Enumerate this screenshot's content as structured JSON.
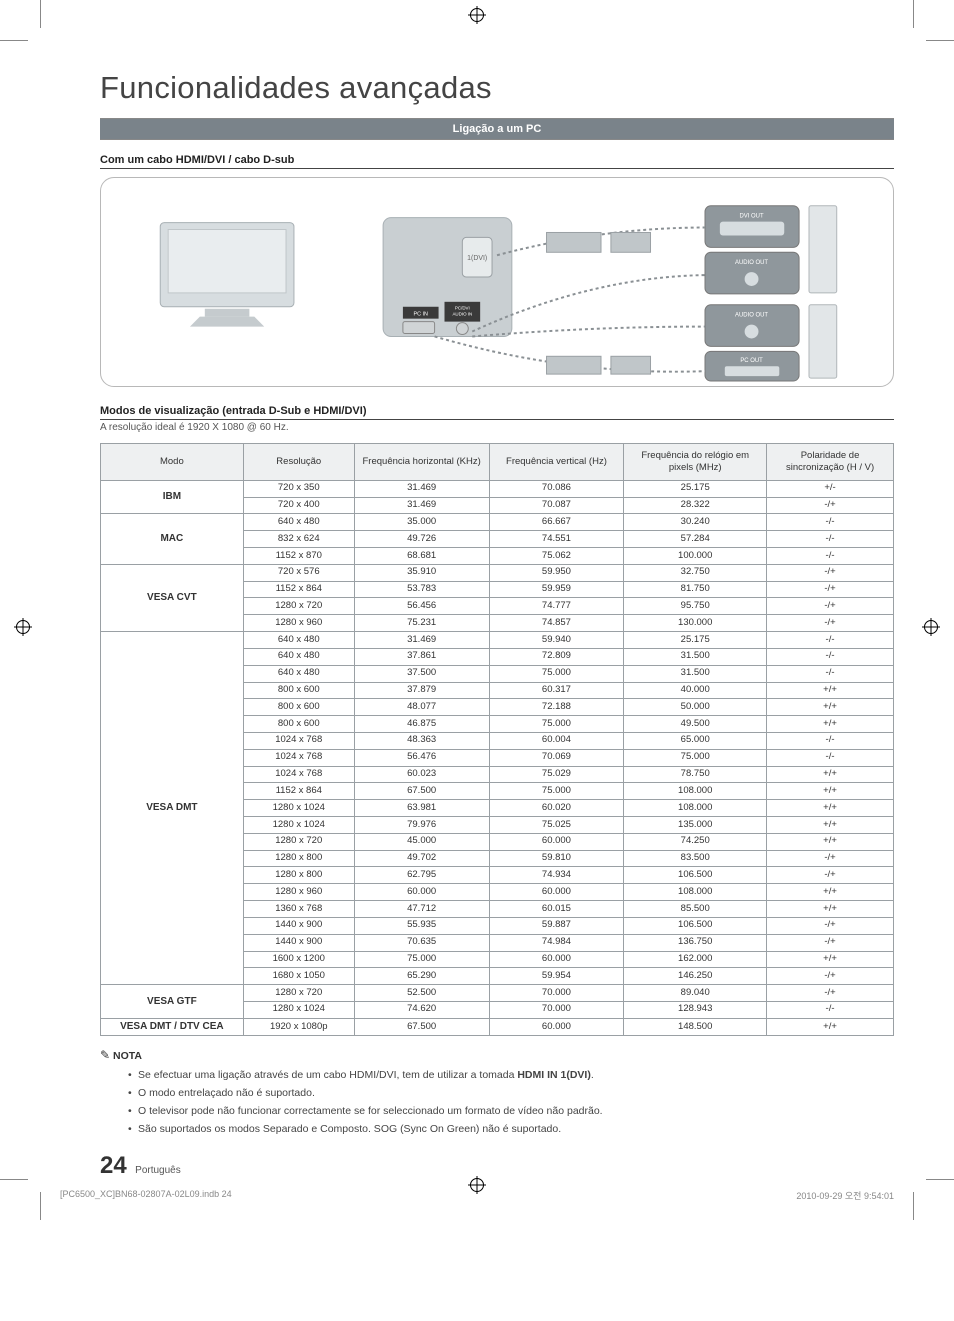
{
  "page": {
    "title": "Funcionalidades avançadas",
    "section_bar": "Ligação a um PC",
    "subhead_cable": "Com um cabo HDMI/DVI / cabo D-sub",
    "subhead_modes": "Modos de visualização (entrada D-Sub e HDMI/DVI)",
    "resolution_note": "A resolução ideal é 1920 X 1080 @ 60 Hz.",
    "page_number": "24",
    "page_lang": "Português",
    "print_left": "[PC6500_XC]BN68-02807A-02L09.indb   24",
    "print_right": "2010-09-29   오전 9:54:01"
  },
  "diagram": {
    "labels": {
      "dvi_out": "DVI OUT",
      "audio_out": "AUDIO OUT",
      "pc_out": "PC OUT",
      "pc_in": "PC IN",
      "pcdvi_audio_in": "PC/DVI\nAUDIO IN",
      "hdmi_port": "1(DVI)"
    }
  },
  "table": {
    "columns": [
      "Modo",
      "Resolução",
      "Frequência horizontal (KHz)",
      "Frequência vertical (Hz)",
      "Frequência do relógio em pixels (MHz)",
      "Polaridade de sincronização (H / V)"
    ],
    "col_widths": [
      "18%",
      "14%",
      "17%",
      "17%",
      "18%",
      "16%"
    ],
    "header_bg": "#eef0f1",
    "border_color": "#9aa0a4",
    "groups": [
      {
        "mode": "IBM",
        "rows": [
          [
            "720 x 350",
            "31.469",
            "70.086",
            "25.175",
            "+/-"
          ],
          [
            "720 x 400",
            "31.469",
            "70.087",
            "28.322",
            "-/+"
          ]
        ]
      },
      {
        "mode": "MAC",
        "rows": [
          [
            "640 x 480",
            "35.000",
            "66.667",
            "30.240",
            "-/-"
          ],
          [
            "832 x 624",
            "49.726",
            "74.551",
            "57.284",
            "-/-"
          ],
          [
            "1152 x 870",
            "68.681",
            "75.062",
            "100.000",
            "-/-"
          ]
        ]
      },
      {
        "mode": "VESA CVT",
        "rows": [
          [
            "720 x 576",
            "35.910",
            "59.950",
            "32.750",
            "-/+"
          ],
          [
            "1152 x 864",
            "53.783",
            "59.959",
            "81.750",
            "-/+"
          ],
          [
            "1280 x 720",
            "56.456",
            "74.777",
            "95.750",
            "-/+"
          ],
          [
            "1280 x 960",
            "75.231",
            "74.857",
            "130.000",
            "-/+"
          ]
        ]
      },
      {
        "mode": "VESA DMT",
        "rows": [
          [
            "640 x 480",
            "31.469",
            "59.940",
            "25.175",
            "-/-"
          ],
          [
            "640 x 480",
            "37.861",
            "72.809",
            "31.500",
            "-/-"
          ],
          [
            "640 x 480",
            "37.500",
            "75.000",
            "31.500",
            "-/-"
          ],
          [
            "800 x 600",
            "37.879",
            "60.317",
            "40.000",
            "+/+"
          ],
          [
            "800 x 600",
            "48.077",
            "72.188",
            "50.000",
            "+/+"
          ],
          [
            "800 x 600",
            "46.875",
            "75.000",
            "49.500",
            "+/+"
          ],
          [
            "1024 x 768",
            "48.363",
            "60.004",
            "65.000",
            "-/-"
          ],
          [
            "1024 x 768",
            "56.476",
            "70.069",
            "75.000",
            "-/-"
          ],
          [
            "1024 x 768",
            "60.023",
            "75.029",
            "78.750",
            "+/+"
          ],
          [
            "1152 x 864",
            "67.500",
            "75.000",
            "108.000",
            "+/+"
          ],
          [
            "1280 x 1024",
            "63.981",
            "60.020",
            "108.000",
            "+/+"
          ],
          [
            "1280 x 1024",
            "79.976",
            "75.025",
            "135.000",
            "+/+"
          ],
          [
            "1280 x 720",
            "45.000",
            "60.000",
            "74.250",
            "+/+"
          ],
          [
            "1280 x 800",
            "49.702",
            "59.810",
            "83.500",
            "-/+"
          ],
          [
            "1280 x 800",
            "62.795",
            "74.934",
            "106.500",
            "-/+"
          ],
          [
            "1280 x 960",
            "60.000",
            "60.000",
            "108.000",
            "+/+"
          ],
          [
            "1360 x 768",
            "47.712",
            "60.015",
            "85.500",
            "+/+"
          ],
          [
            "1440 x 900",
            "55.935",
            "59.887",
            "106.500",
            "-/+"
          ],
          [
            "1440 x 900",
            "70.635",
            "74.984",
            "136.750",
            "-/+"
          ],
          [
            "1600 x 1200",
            "75.000",
            "60.000",
            "162.000",
            "+/+"
          ],
          [
            "1680 x 1050",
            "65.290",
            "59.954",
            "146.250",
            "-/+"
          ]
        ]
      },
      {
        "mode": "VESA GTF",
        "rows": [
          [
            "1280 x 720",
            "52.500",
            "70.000",
            "89.040",
            "-/+"
          ],
          [
            "1280 x 1024",
            "74.620",
            "70.000",
            "128.943",
            "-/-"
          ]
        ]
      },
      {
        "mode": "VESA DMT / DTV CEA",
        "rows": [
          [
            "1920 x 1080p",
            "67.500",
            "60.000",
            "148.500",
            "+/+"
          ]
        ]
      }
    ]
  },
  "nota": {
    "heading": "NOTA",
    "items": [
      "Se efectuar uma ligação através de um cabo HDMI/DVI, tem de utilizar a tomada HDMI IN 1(DVI).",
      "O modo entrelaçado não é suportado.",
      "O televisor pode não funcionar correctamente se for seleccionado um formato de vídeo não padrão.",
      "São suportados os modos Separado e Composto. SOG (Sync On Green) não é suportado."
    ]
  },
  "colors": {
    "section_bar_bg": "#7a838a",
    "section_bar_fg": "#ffffff",
    "border": "#9aa0a4",
    "text": "#333333"
  }
}
